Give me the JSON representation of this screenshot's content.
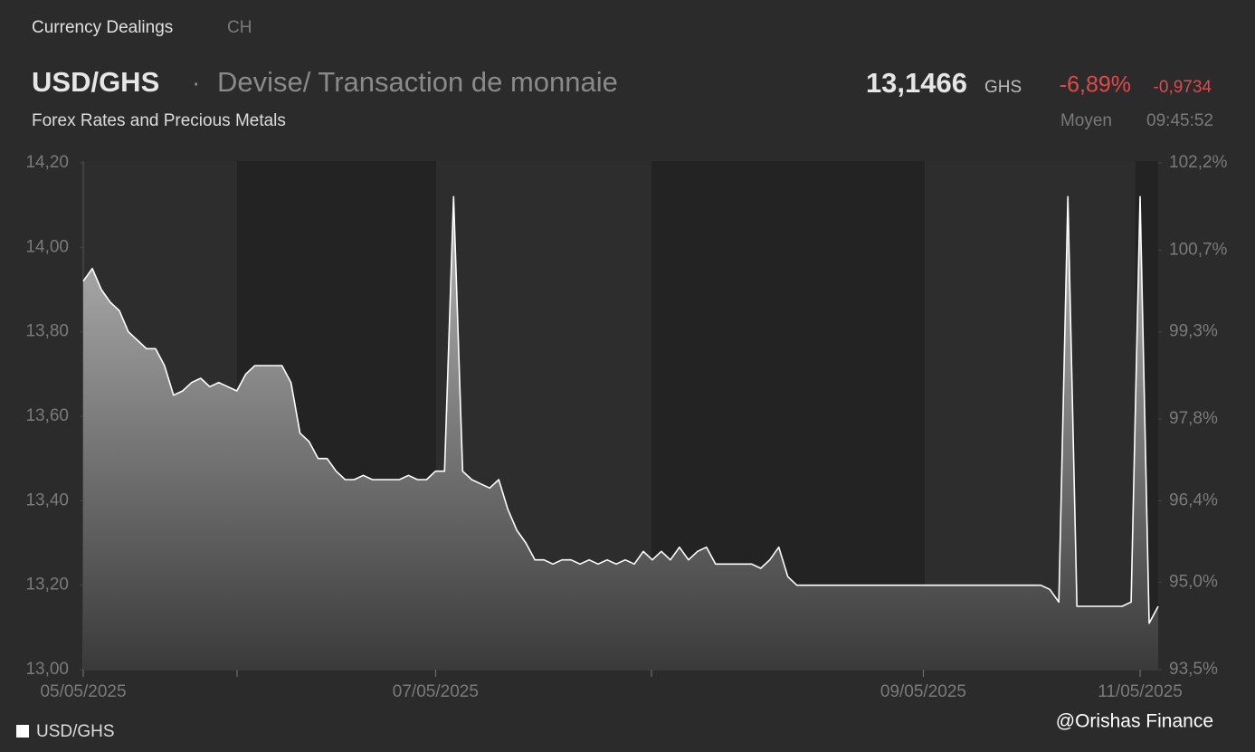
{
  "header": {
    "section": "Currency Dealings",
    "region": "CH",
    "symbol": "USD/GHS",
    "separator": "·",
    "description": "Devise/ Transaction de monnaie",
    "subtitle": "Forex Rates and Precious Metals",
    "price": "13,1466",
    "currency": "GHS",
    "change_pct": "-6,89%",
    "change_abs": "-0,9734",
    "price_type": "Moyen",
    "time": "09:45:52"
  },
  "watermark": "@Orishas Finance",
  "chart_data": {
    "type": "line",
    "categories": [
      "05/05/2025",
      null,
      null,
      null,
      null,
      null,
      null,
      null,
      null,
      null,
      null,
      null,
      null,
      null,
      null,
      null,
      null,
      null,
      null,
      null,
      null,
      null,
      null,
      null,
      null,
      null,
      null,
      null,
      null,
      null,
      null,
      null,
      null,
      null,
      null,
      null,
      null,
      null,
      null,
      "07/05/2025",
      null,
      null,
      null,
      null,
      null,
      null,
      null,
      null,
      null,
      null,
      null,
      null,
      null,
      null,
      null,
      null,
      null,
      null,
      null,
      null,
      null,
      null,
      null,
      null,
      null,
      null,
      null,
      null,
      null,
      null,
      null,
      null,
      null,
      null,
      null,
      null,
      null,
      null,
      null,
      null,
      null,
      null,
      null,
      null,
      null,
      null,
      null,
      null,
      null,
      null,
      null,
      null,
      null,
      "09/05/2025",
      null,
      null,
      null,
      null,
      null,
      null,
      null,
      null,
      null,
      null,
      null,
      null,
      null,
      null,
      null,
      null,
      null,
      null,
      null,
      null,
      null,
      null,
      null,
      "11/05/2025",
      null,
      null
    ],
    "series": [
      {
        "name": "USD/GHS",
        "color": "#ffffff",
        "values": [
          13.92,
          13.95,
          13.9,
          13.87,
          13.85,
          13.8,
          13.78,
          13.76,
          13.76,
          13.72,
          13.65,
          13.66,
          13.68,
          13.69,
          13.67,
          13.68,
          13.67,
          13.66,
          13.7,
          13.72,
          13.72,
          13.72,
          13.72,
          13.68,
          13.56,
          13.54,
          13.5,
          13.5,
          13.47,
          13.45,
          13.45,
          13.46,
          13.45,
          13.45,
          13.45,
          13.45,
          13.46,
          13.45,
          13.45,
          13.47,
          13.47,
          14.12,
          13.47,
          13.45,
          13.44,
          13.43,
          13.45,
          13.38,
          13.33,
          13.3,
          13.26,
          13.26,
          13.25,
          13.26,
          13.26,
          13.25,
          13.26,
          13.25,
          13.26,
          13.25,
          13.26,
          13.25,
          13.28,
          13.26,
          13.28,
          13.26,
          13.29,
          13.26,
          13.28,
          13.29,
          13.25,
          13.25,
          13.25,
          13.25,
          13.25,
          13.24,
          13.26,
          13.29,
          13.22,
          13.2,
          13.2,
          13.2,
          13.2,
          13.2,
          13.2,
          13.2,
          13.2,
          13.2,
          13.2,
          13.2,
          13.2,
          13.2,
          13.2,
          13.2,
          13.2,
          13.2,
          13.2,
          13.2,
          13.2,
          13.2,
          13.2,
          13.2,
          13.2,
          13.2,
          13.2,
          13.2,
          13.2,
          13.19,
          13.16,
          14.12,
          13.15,
          13.15,
          13.15,
          13.15,
          13.15,
          13.15,
          13.16,
          14.12,
          13.11,
          13.15
        ]
      }
    ],
    "ylim": [
      13.0,
      14.2
    ],
    "yticks": [
      {
        "value": 13.0,
        "label": "13,00"
      },
      {
        "value": 13.2,
        "label": "13,20"
      },
      {
        "value": 13.4,
        "label": "13,40"
      },
      {
        "value": 13.6,
        "label": "13,60"
      },
      {
        "value": 13.8,
        "label": "13,80"
      },
      {
        "value": 14.0,
        "label": "14,00"
      },
      {
        "value": 14.2,
        "label": "14,20"
      }
    ],
    "y2lim": [
      93.5,
      102.2
    ],
    "y2ticks": [
      {
        "value": 93.5,
        "label": "93,5%"
      },
      {
        "value": 95.0,
        "label": "95,0%"
      },
      {
        "value": 96.4,
        "label": "96,4%"
      },
      {
        "value": 97.8,
        "label": "97,8%"
      },
      {
        "value": 99.3,
        "label": "99,3%"
      },
      {
        "value": 100.7,
        "label": "100,7%"
      },
      {
        "value": 102.2,
        "label": "102,2%"
      }
    ]
  }
}
